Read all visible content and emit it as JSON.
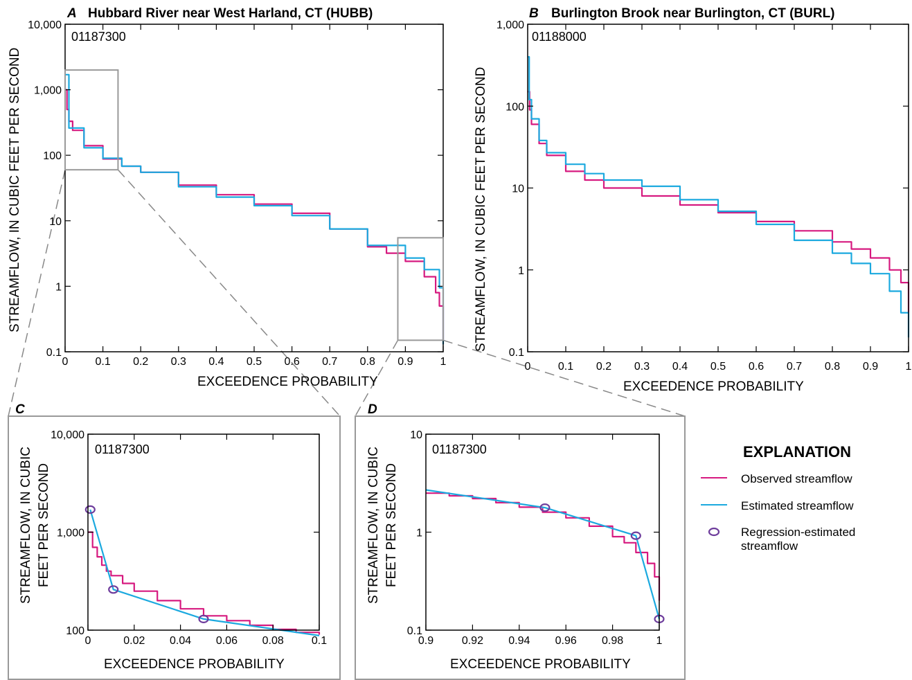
{
  "colors": {
    "observed": "#d6197f",
    "estimated": "#1ba9df",
    "regression": "#6e3d9c",
    "frame": "#000000",
    "inset_box": "#999999",
    "zoom_lines": "#888888"
  },
  "legend": {
    "title": "EXPLANATION",
    "items": [
      {
        "key": "observed",
        "label": "Observed streamflow",
        "marker": "line"
      },
      {
        "key": "estimated",
        "label": "Estimated streamflow",
        "marker": "line"
      },
      {
        "key": "regression",
        "label": "Regression-estimated",
        "label2": "streamflow",
        "marker": "circle"
      }
    ]
  },
  "chart_data": [
    {
      "id": "A",
      "type": "line",
      "letter": "A",
      "title": "Hubbard River near West Harland, CT (HUBB)",
      "site": "01187300",
      "xlabel": "EXCEEDENCE PROBABILITY",
      "ylabel": "STREAMFLOW, IN CUBIC FEET PER SECOND",
      "xlim": [
        0,
        1
      ],
      "ylim": [
        0.1,
        10000
      ],
      "y_scale": "log",
      "xticks": [
        {
          "v": 0,
          "label": "0"
        },
        {
          "v": 0.1,
          "label": "0.1"
        },
        {
          "v": 0.2,
          "label": "0.2"
        },
        {
          "v": 0.3,
          "label": "0.3"
        },
        {
          "v": 0.4,
          "label": "0.4"
        },
        {
          "v": 0.5,
          "label": "0.5"
        },
        {
          "v": 0.6,
          "label": "0.6"
        },
        {
          "v": 0.7,
          "label": "0.7"
        },
        {
          "v": 0.8,
          "label": "0.8"
        },
        {
          "v": 0.9,
          "label": "0.9"
        },
        {
          "v": 1,
          "label": "1"
        }
      ],
      "yticks": [
        {
          "v": 0.1,
          "label": "0.1"
        },
        {
          "v": 1,
          "label": "1"
        },
        {
          "v": 10,
          "label": "10"
        },
        {
          "v": 100,
          "label": "100"
        },
        {
          "v": 1000,
          "label": "1,000"
        },
        {
          "v": 10000,
          "label": "10,000"
        }
      ],
      "series": [
        {
          "name": "Observed streamflow",
          "key": "observed",
          "x": [
            0,
            0.005,
            0.01,
            0.02,
            0.05,
            0.1,
            0.15,
            0.2,
            0.3,
            0.4,
            0.5,
            0.6,
            0.7,
            0.8,
            0.85,
            0.9,
            0.95,
            0.98,
            0.99,
            1.0
          ],
          "y": [
            1000,
            500,
            330,
            240,
            140,
            88,
            68,
            55,
            35,
            25,
            18,
            13,
            7.5,
            4,
            3.2,
            2.4,
            1.4,
            0.8,
            0.5,
            0.15
          ]
        },
        {
          "name": "Estimated streamflow",
          "key": "estimated",
          "x": [
            0,
            0.01,
            0.05,
            0.1,
            0.15,
            0.2,
            0.3,
            0.4,
            0.5,
            0.6,
            0.7,
            0.8,
            0.9,
            0.95,
            0.99,
            1.0
          ],
          "y": [
            1700,
            260,
            130,
            90,
            68,
            55,
            33,
            23,
            17,
            12,
            7.5,
            4.2,
            2.7,
            1.8,
            0.95,
            0.13
          ]
        }
      ],
      "inset_boxes": [
        {
          "x": [
            0,
            0.14
          ],
          "y": [
            60,
            2000
          ]
        },
        {
          "x": [
            0.88,
            1.0
          ],
          "y": [
            0.15,
            5.5
          ]
        }
      ]
    },
    {
      "id": "B",
      "type": "line",
      "letter": "B",
      "title": "Burlington Brook near Burlington, CT (BURL)",
      "site": "01188000",
      "xlabel": "EXCEEDENCE PROBABILITY",
      "ylabel": "STREAMFLOW, IN CUBIC FEET PER SECOND",
      "xlim": [
        0,
        1
      ],
      "ylim": [
        0.1,
        1000
      ],
      "y_scale": "log",
      "xticks": [
        {
          "v": 0,
          "label": "0"
        },
        {
          "v": 0.1,
          "label": "0.1"
        },
        {
          "v": 0.2,
          "label": "0.2"
        },
        {
          "v": 0.3,
          "label": "0.3"
        },
        {
          "v": 0.4,
          "label": "0.4"
        },
        {
          "v": 0.5,
          "label": "0.5"
        },
        {
          "v": 0.6,
          "label": "0.6"
        },
        {
          "v": 0.7,
          "label": "0.7"
        },
        {
          "v": 0.8,
          "label": "0.8"
        },
        {
          "v": 0.9,
          "label": "0.9"
        },
        {
          "v": 1,
          "label": "1"
        }
      ],
      "yticks": [
        {
          "v": 0.1,
          "label": "0.1"
        },
        {
          "v": 1,
          "label": "1"
        },
        {
          "v": 10,
          "label": "10"
        },
        {
          "v": 100,
          "label": "100"
        },
        {
          "v": 1000,
          "label": "1,000"
        }
      ],
      "series": [
        {
          "name": "Observed streamflow",
          "key": "observed",
          "x": [
            0,
            0.005,
            0.01,
            0.03,
            0.05,
            0.1,
            0.15,
            0.2,
            0.3,
            0.4,
            0.5,
            0.6,
            0.7,
            0.8,
            0.85,
            0.9,
            0.95,
            0.98,
            1.0
          ],
          "y": [
            150,
            90,
            60,
            35,
            25,
            16,
            12.5,
            10,
            8,
            6.2,
            5,
            3.9,
            3.0,
            2.2,
            1.8,
            1.4,
            1.0,
            0.7,
            0.3
          ]
        },
        {
          "name": "Estimated streamflow",
          "key": "estimated",
          "x": [
            0,
            0.004,
            0.01,
            0.03,
            0.05,
            0.1,
            0.15,
            0.2,
            0.3,
            0.4,
            0.5,
            0.6,
            0.7,
            0.8,
            0.85,
            0.9,
            0.95,
            0.98,
            1.0
          ],
          "y": [
            400,
            120,
            70,
            38,
            27,
            19.5,
            15,
            12.5,
            10.5,
            7.2,
            5.2,
            3.6,
            2.3,
            1.6,
            1.2,
            0.9,
            0.55,
            0.3,
            0.15
          ]
        }
      ]
    },
    {
      "id": "C",
      "type": "line",
      "letter": "C",
      "site": "01187300",
      "xlabel": "EXCEEDENCE PROBABILITY",
      "ylabel": "STREAMFLOW, IN CUBIC",
      "ylabel2": "FEET PER SECOND",
      "xlim": [
        0,
        0.1
      ],
      "ylim": [
        100,
        10000
      ],
      "y_scale": "log",
      "xticks": [
        {
          "v": 0,
          "label": "0"
        },
        {
          "v": 0.02,
          "label": "0.02"
        },
        {
          "v": 0.04,
          "label": "0.04"
        },
        {
          "v": 0.06,
          "label": "0.06"
        },
        {
          "v": 0.08,
          "label": "0.08"
        },
        {
          "v": 0.1,
          "label": "0.1"
        }
      ],
      "yticks": [
        {
          "v": 100,
          "label": "100"
        },
        {
          "v": 1000,
          "label": "1,000"
        },
        {
          "v": 10000,
          "label": "10,000"
        }
      ],
      "series": [
        {
          "name": "Observed streamflow",
          "key": "observed",
          "x": [
            0,
            0.002,
            0.004,
            0.006,
            0.008,
            0.01,
            0.015,
            0.02,
            0.03,
            0.04,
            0.05,
            0.06,
            0.07,
            0.08,
            0.09,
            0.1
          ],
          "y": [
            1000,
            700,
            560,
            460,
            400,
            360,
            300,
            250,
            200,
            165,
            140,
            125,
            112,
            102,
            95,
            90
          ]
        },
        {
          "name": "Estimated streamflow",
          "key": "estimated",
          "x": [
            0.001,
            0.011,
            0.05,
            0.1
          ],
          "y": [
            1700,
            260,
            130,
            88
          ]
        },
        {
          "name": "Regression-estimated streamflow",
          "key": "regression",
          "marker": "circle",
          "x": [
            0.001,
            0.011,
            0.05
          ],
          "y": [
            1700,
            260,
            130
          ]
        }
      ]
    },
    {
      "id": "D",
      "type": "line",
      "letter": "D",
      "site": "01187300",
      "xlabel": "EXCEEDENCE PROBABILITY",
      "ylabel": "STREAMFLOW, IN CUBIC",
      "ylabel2": "FEET PER SECOND",
      "xlim": [
        0.9,
        1.0
      ],
      "ylim": [
        0.1,
        10
      ],
      "y_scale": "log",
      "xticks": [
        {
          "v": 0.9,
          "label": "0.9"
        },
        {
          "v": 0.92,
          "label": "0.92"
        },
        {
          "v": 0.94,
          "label": "0.94"
        },
        {
          "v": 0.96,
          "label": "0.96"
        },
        {
          "v": 0.98,
          "label": "0.98"
        },
        {
          "v": 1.0,
          "label": "1"
        }
      ],
      "yticks": [
        {
          "v": 0.1,
          "label": "0.1"
        },
        {
          "v": 1,
          "label": "1"
        },
        {
          "v": 10,
          "label": "10"
        }
      ],
      "series": [
        {
          "name": "Observed streamflow",
          "key": "observed",
          "x": [
            0.9,
            0.91,
            0.92,
            0.93,
            0.94,
            0.95,
            0.96,
            0.97,
            0.98,
            0.985,
            0.99,
            0.995,
            0.998,
            1.0
          ],
          "y": [
            2.5,
            2.35,
            2.2,
            2.0,
            1.8,
            1.6,
            1.4,
            1.15,
            0.9,
            0.78,
            0.62,
            0.48,
            0.35,
            0.2
          ]
        },
        {
          "name": "Estimated streamflow",
          "key": "estimated",
          "x": [
            0.9,
            0.951,
            0.99,
            1.0
          ],
          "y": [
            2.7,
            1.78,
            0.92,
            0.13
          ]
        },
        {
          "name": "Regression-estimated streamflow",
          "key": "regression",
          "marker": "circle",
          "x": [
            0.951,
            0.99,
            1.0
          ],
          "y": [
            1.78,
            0.92,
            0.13
          ]
        }
      ]
    }
  ]
}
